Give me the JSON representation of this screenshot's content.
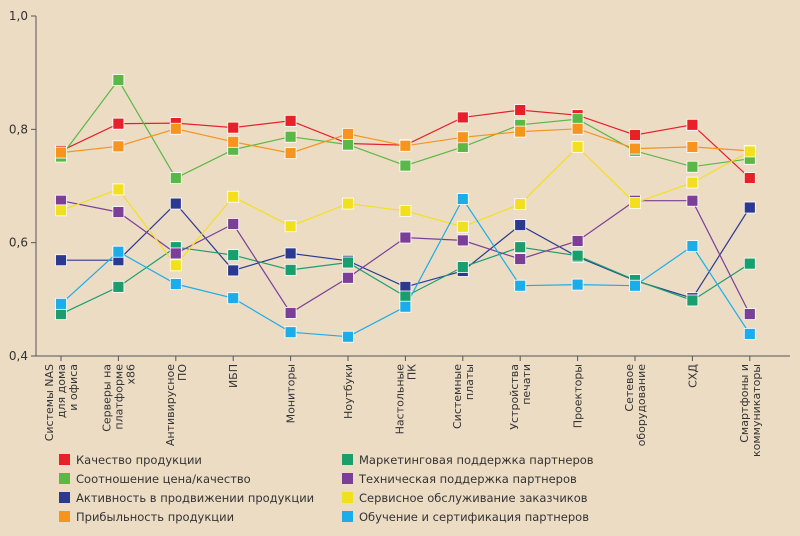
{
  "chart_data": {
    "type": "line",
    "title": "",
    "xlabel": "",
    "ylabel": "",
    "ylim": [
      0.4,
      1.0
    ],
    "yticks": [
      "0,4",
      "0,6",
      "0,8",
      "1,0"
    ],
    "grid": false,
    "legend_position": "bottom",
    "categories": [
      [
        "Системы NAS",
        "для дома",
        "и офиса"
      ],
      [
        "Серверы на",
        "платформе",
        "x86"
      ],
      [
        "Антивирусное",
        "ПО"
      ],
      [
        "ИБП"
      ],
      [
        "Мониторы"
      ],
      [
        "Ноутбуки"
      ],
      [
        "Настольные",
        "ПК"
      ],
      [
        "Системные",
        "платы"
      ],
      [
        "Устройства",
        "печати"
      ],
      [
        "Проекторы"
      ],
      [
        "Сетевое",
        "оборудование"
      ],
      [
        "СХД"
      ],
      [
        "Смартфоны и",
        "коммуникаторы"
      ]
    ],
    "series": [
      {
        "name": "Качество продукции",
        "color": "#e8202a",
        "values": [
          0.762,
          0.81,
          0.811,
          0.803,
          0.815,
          0.775,
          0.772,
          0.821,
          0.834,
          0.825,
          0.79,
          0.808,
          0.714
        ]
      },
      {
        "name": "Соотношение цена/качество",
        "color": "#5bb846",
        "values": [
          0.752,
          0.887,
          0.714,
          0.764,
          0.787,
          0.773,
          0.736,
          0.769,
          0.808,
          0.818,
          0.762,
          0.734,
          0.748
        ]
      },
      {
        "name": "Активность в продвижении продукции",
        "color": "#2b3990",
        "values": [
          0.569,
          0.569,
          0.669,
          0.551,
          0.581,
          0.568,
          0.522,
          0.55,
          0.631,
          0.575,
          0.533,
          0.502,
          0.662
        ]
      },
      {
        "name": "Прибыльность продукции",
        "color": "#f7941d",
        "values": [
          0.759,
          0.77,
          0.801,
          0.778,
          0.758,
          0.792,
          0.771,
          0.786,
          0.796,
          0.801,
          0.766,
          0.769,
          0.762
        ]
      },
      {
        "name": "Маркетинговая поддержка партнеров",
        "color": "#1a9e6e",
        "values": [
          0.474,
          0.522,
          0.592,
          0.578,
          0.552,
          0.565,
          0.505,
          0.557,
          0.592,
          0.577,
          0.534,
          0.498,
          0.563
        ]
      },
      {
        "name": "Техническая поддержка партнеров",
        "color": "#7b3f98",
        "values": [
          0.674,
          0.654,
          0.581,
          0.633,
          0.476,
          0.538,
          0.609,
          0.604,
          0.571,
          0.603,
          0.674,
          0.674,
          0.474
        ]
      },
      {
        "name": "Сервисное обслуживание заказчиков",
        "color": "#f2e01e",
        "values": [
          0.657,
          0.694,
          0.56,
          0.681,
          0.629,
          0.669,
          0.656,
          0.628,
          0.668,
          0.769,
          0.67,
          0.706,
          0.761
        ]
      },
      {
        "name": "Обучение и сертификация партнеров",
        "color": "#1badea",
        "values": [
          0.492,
          0.584,
          0.527,
          0.502,
          0.442,
          0.434,
          0.487,
          0.677,
          0.524,
          0.526,
          0.524,
          0.594,
          0.439
        ]
      }
    ]
  }
}
